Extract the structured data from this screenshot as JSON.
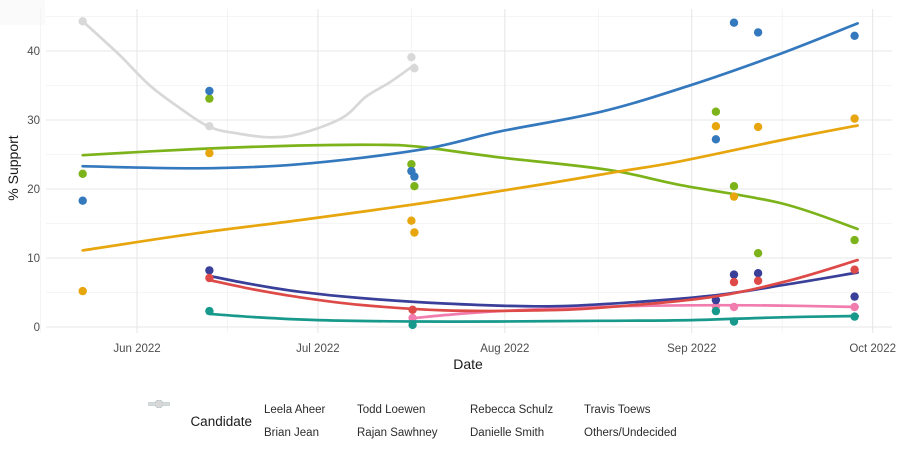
{
  "chart_data": {
    "type": "scatter",
    "subtype": "scatter-with-smooth-trend-lines",
    "title": "",
    "xlabel": "Date",
    "ylabel": "% Support",
    "legend_title": "Candidate",
    "x_unit": "days since 2022-06-01",
    "x_axis": {
      "tick_labels": [
        "Jun 2022",
        "Jul 2022",
        "Aug 2022",
        "Sep 2022",
        "Oct 2022"
      ],
      "tick_days": [
        0,
        30,
        61,
        92,
        122
      ],
      "minor_tick_days": [
        -16,
        15,
        45.5,
        76.5,
        107
      ]
    },
    "y_axis": {
      "tick_labels": [
        "0",
        "10",
        "20",
        "30",
        "40"
      ],
      "ticks": [
        0,
        10,
        20,
        30,
        40
      ],
      "minor_ticks": [
        5,
        15,
        25,
        35,
        45
      ],
      "range": [
        -2,
        46
      ]
    },
    "grid": "on",
    "legend_position": "bottom",
    "series": [
      {
        "name": "Leela Aheer",
        "color": "#F17CAE",
        "points": [
          [
            45.7,
            1.3
          ],
          [
            96,
            3.0
          ],
          [
            99,
            2.9
          ],
          [
            119,
            2.9
          ]
        ],
        "trend": [
          [
            46,
            1.3
          ],
          [
            52,
            1.8
          ],
          [
            60,
            2.3
          ],
          [
            70,
            2.7
          ],
          [
            80,
            3.0
          ],
          [
            92,
            3.15
          ],
          [
            107,
            3.1
          ],
          [
            119.5,
            2.9
          ]
        ]
      },
      {
        "name": "Brian Jean",
        "color": "#7DB31A",
        "points": [
          [
            -9,
            22.2
          ],
          [
            12,
            33.1
          ],
          [
            45.5,
            23.6
          ],
          [
            46,
            20.4
          ],
          [
            96,
            31.2
          ],
          [
            99,
            20.4
          ],
          [
            103,
            10.7
          ],
          [
            119,
            12.6
          ]
        ],
        "trend": [
          [
            -9,
            24.9
          ],
          [
            10,
            25.8
          ],
          [
            27,
            26.3
          ],
          [
            40,
            26.4
          ],
          [
            47,
            26.1
          ],
          [
            60,
            24.6
          ],
          [
            78,
            22.8
          ],
          [
            90,
            20.6
          ],
          [
            107,
            17.9
          ],
          [
            119.5,
            14.2
          ]
        ]
      },
      {
        "name": "Todd Loewen",
        "color": "#3A3F99",
        "points": [
          [
            12,
            8.2
          ],
          [
            96,
            3.9
          ],
          [
            99,
            7.6
          ],
          [
            103,
            7.8
          ],
          [
            119,
            4.4
          ]
        ],
        "trend": [
          [
            12,
            7.4
          ],
          [
            19,
            6.2
          ],
          [
            27,
            5.1
          ],
          [
            37,
            4.2
          ],
          [
            51,
            3.4
          ],
          [
            66,
            3.0
          ],
          [
            77,
            3.3
          ],
          [
            95,
            4.5
          ],
          [
            108,
            6.2
          ],
          [
            119.5,
            7.9
          ]
        ]
      },
      {
        "name": "Rajan Sawhney",
        "color": "#17998C",
        "points": [
          [
            12,
            2.3
          ],
          [
            45.7,
            0.3
          ],
          [
            96,
            2.3
          ],
          [
            99,
            0.8
          ],
          [
            119,
            1.5
          ]
        ],
        "trend": [
          [
            12,
            1.9
          ],
          [
            20,
            1.4
          ],
          [
            30,
            1.0
          ],
          [
            46,
            0.8
          ],
          [
            60,
            0.8
          ],
          [
            77,
            0.9
          ],
          [
            92,
            1.0
          ],
          [
            107,
            1.4
          ],
          [
            119.5,
            1.6
          ]
        ]
      },
      {
        "name": "Rebecca Schulz",
        "color": "#DD4A48",
        "points": [
          [
            12,
            7.1
          ],
          [
            45.7,
            2.5
          ],
          [
            99,
            6.5
          ],
          [
            103,
            6.7
          ],
          [
            119,
            8.3
          ]
        ],
        "trend": [
          [
            12,
            6.8
          ],
          [
            19,
            5.5
          ],
          [
            27,
            4.3
          ],
          [
            37,
            3.2
          ],
          [
            51,
            2.4
          ],
          [
            66,
            2.4
          ],
          [
            77,
            2.8
          ],
          [
            95,
            4.3
          ],
          [
            108,
            6.7
          ],
          [
            119.5,
            9.7
          ]
        ]
      },
      {
        "name": "Danielle Smith",
        "color": "#3478BD",
        "points": [
          [
            -9,
            18.3
          ],
          [
            12,
            34.2
          ],
          [
            45.5,
            22.6
          ],
          [
            46,
            21.8
          ],
          [
            96,
            27.2
          ],
          [
            99,
            44.1
          ],
          [
            103,
            42.7
          ],
          [
            119,
            42.2
          ]
        ],
        "trend": [
          [
            -9,
            23.3
          ],
          [
            10,
            23.0
          ],
          [
            27,
            23.6
          ],
          [
            47,
            25.7
          ],
          [
            60,
            28.3
          ],
          [
            77,
            31.2
          ],
          [
            92,
            35.1
          ],
          [
            107,
            39.7
          ],
          [
            119.5,
            44.0
          ]
        ]
      },
      {
        "name": "Travis Toews",
        "color": "#E7A60E",
        "points": [
          [
            -9,
            5.2
          ],
          [
            12,
            25.2
          ],
          [
            45.5,
            15.4
          ],
          [
            46,
            13.7
          ],
          [
            96,
            29.1
          ],
          [
            99,
            18.9
          ],
          [
            103,
            29.0
          ],
          [
            119,
            30.2
          ]
        ],
        "trend": [
          [
            -9,
            11.1
          ],
          [
            10,
            13.6
          ],
          [
            27,
            15.5
          ],
          [
            47,
            17.9
          ],
          [
            66,
            20.5
          ],
          [
            79,
            22.4
          ],
          [
            90,
            24.0
          ],
          [
            107,
            27.1
          ],
          [
            119.5,
            29.2
          ]
        ]
      },
      {
        "name": "Others/Undecided",
        "color": "#D8D8D8",
        "points": [
          [
            -9,
            44.3
          ],
          [
            12,
            29.1
          ],
          [
            45.5,
            39.1
          ],
          [
            46,
            37.5
          ]
        ],
        "trend": [
          [
            -9,
            44.3
          ],
          [
            -3,
            39.5
          ],
          [
            2,
            35.1
          ],
          [
            7,
            31.8
          ],
          [
            12,
            29.0
          ],
          [
            17,
            28.0
          ],
          [
            22,
            27.5
          ],
          [
            27,
            28.0
          ],
          [
            34,
            30.3
          ],
          [
            38,
            33.4
          ],
          [
            42,
            35.5
          ],
          [
            46,
            38.0
          ]
        ]
      }
    ],
    "legend_rows": [
      [
        "Leela Aheer",
        "Todd Loewen",
        "Rebecca Schulz",
        "Travis Toews"
      ],
      [
        "Brian Jean",
        "Rajan Sawhney",
        "Danielle Smith",
        "Others/Undecided"
      ]
    ]
  },
  "theme": {
    "background": "#ffffff",
    "grid_major": "#e7e7e7",
    "grid_minor": "#f2f2f2",
    "tick_text": "#4d4d4d",
    "title_text": "#1a1a1a"
  }
}
